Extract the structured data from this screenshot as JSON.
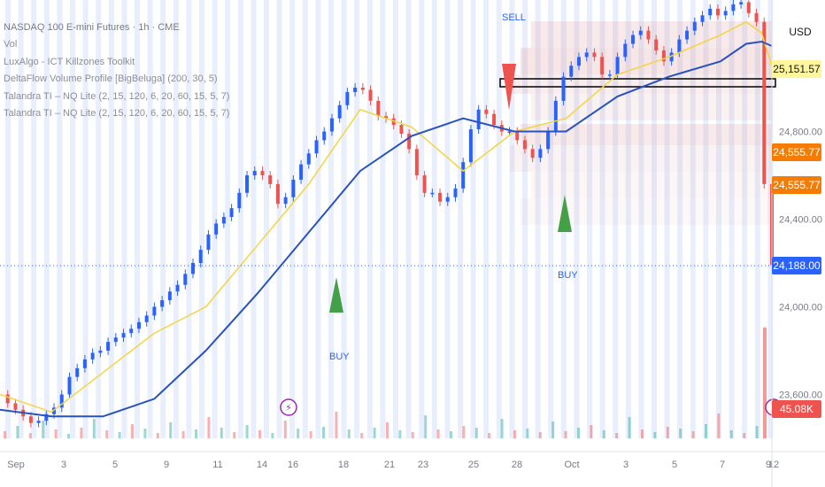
{
  "legend": {
    "title": "NASDAQ 100 E-mini Futures · 1h · CME",
    "vol": "Vol",
    "ind1": "LuxAlgo - ICT Killzones Toolkit",
    "ind2": "DeltaFlow Volume Profile [BigBeluga] (200, 30, 5)",
    "ind3": "Talandra TI – NQ Lite (2, 15, 120, 6, 20, 60, 15, 5, 7)",
    "ind4": "Talandra TI – NQ Lite (2, 15, 120, 6, 20, 60, 15, 5, 7)"
  },
  "currency": "USD",
  "price_tags": {
    "top": "25,151.57",
    "mid1": "24,555.77",
    "mid2": "24,555.77",
    "last": "24,188.00"
  },
  "volume_tag": "45.08K",
  "signals": {
    "buy1": "BUY",
    "buy2": "BUY",
    "sell": "SELL"
  },
  "colors": {
    "up": "#26a69a",
    "down": "#ef5350",
    "candle_up": "#2962ff",
    "candle_down": "#ef5350",
    "ma_fast": "#f5d442",
    "ma_slow": "#2a52be",
    "buy_arrow": "#43a047",
    "sell_arrow": "#ef5350",
    "killzone": "#e8eefc",
    "last_price": "#2962ff",
    "tag_orange": "#f57c00",
    "tag_yellow": "#fff59d"
  },
  "chart_data": {
    "type": "line",
    "title": "NASDAQ 100 E-mini Futures · 1h · CME",
    "x_ticks": [
      "Sep",
      "3",
      "5",
      "9",
      "11",
      "14",
      "16",
      "18",
      "21",
      "23",
      "25",
      "28",
      "Oct",
      "3",
      "5",
      "7",
      "9",
      "12"
    ],
    "y_ticks": [
      "24,800.00",
      "24,400.00",
      "24,000.00",
      "23,600.00"
    ],
    "ylim": [
      23400,
      25400
    ],
    "series": [
      {
        "kind": "price",
        "x": [
          0,
          3,
          6,
          9,
          12,
          15,
          18,
          21,
          24,
          27,
          30,
          33,
          36,
          39,
          42,
          45,
          48,
          51,
          54,
          57,
          60,
          63,
          66,
          69,
          72,
          75,
          78,
          81,
          84,
          87,
          90,
          93,
          96,
          99,
          102,
          105,
          108,
          111,
          114,
          117,
          120,
          123,
          126,
          129,
          132,
          135,
          138,
          141,
          144,
          147,
          150,
          153,
          156,
          159,
          162,
          165,
          168,
          171,
          174,
          177,
          180,
          183,
          186,
          189,
          192,
          195,
          198,
          201,
          204,
          207,
          210,
          213,
          216,
          219,
          222,
          225,
          228,
          231,
          234,
          237,
          240,
          243,
          246,
          249,
          252,
          255,
          258,
          261,
          264,
          267,
          270,
          273,
          276,
          279,
          282,
          285,
          288,
          291,
          294,
          297,
          300
        ],
        "values": [
          23600,
          23560,
          23530,
          23500,
          23470,
          23480,
          23510,
          23540,
          23600,
          23680,
          23720,
          23760,
          23790,
          23800,
          23840,
          23860,
          23880,
          23900,
          23930,
          23960,
          24000,
          24030,
          24070,
          24100,
          24150,
          24200,
          24260,
          24330,
          24380,
          24410,
          24450,
          24520,
          24600,
          24620,
          24600,
          24560,
          24470,
          24500,
          24580,
          24650,
          24700,
          24760,
          24800,
          24860,
          24920,
          24980,
          25000,
          24990,
          24940,
          24870,
          24860,
          24830,
          24790,
          24720,
          24600,
          24520,
          24520,
          24480,
          24500,
          24540,
          24660,
          24810,
          24900,
          24880,
          24830,
          24800,
          24800,
          24760,
          24720,
          24680,
          24720,
          24800,
          24940,
          25050,
          25100,
          25140,
          25160,
          25140,
          25060,
          25060,
          25140,
          25200,
          25240,
          25260,
          25220,
          25170,
          25120,
          25160,
          25220,
          25260,
          25300,
          25330,
          25360,
          25330,
          25350,
          25380,
          25390,
          25340,
          25300,
          24560,
          24190
        ]
      },
      {
        "kind": "ma_fast",
        "x": [
          0,
          20,
          40,
          60,
          80,
          100,
          120,
          140,
          160,
          180,
          200,
          220,
          240,
          260,
          280,
          290,
          296,
          300
        ],
        "values": [
          23600,
          23520,
          23700,
          23880,
          24000,
          24280,
          24560,
          24900,
          24820,
          24620,
          24800,
          24860,
          25060,
          25140,
          25240,
          25300,
          25250,
          25100
        ]
      },
      {
        "kind": "ma_slow",
        "x": [
          0,
          20,
          40,
          60,
          80,
          100,
          120,
          140,
          160,
          180,
          200,
          220,
          240,
          260,
          280,
          290,
          296,
          300
        ],
        "values": [
          23530,
          23500,
          23500,
          23580,
          23800,
          24060,
          24340,
          24620,
          24780,
          24860,
          24800,
          24800,
          24960,
          25050,
          25120,
          25200,
          25210,
          25190
        ]
      }
    ]
  }
}
